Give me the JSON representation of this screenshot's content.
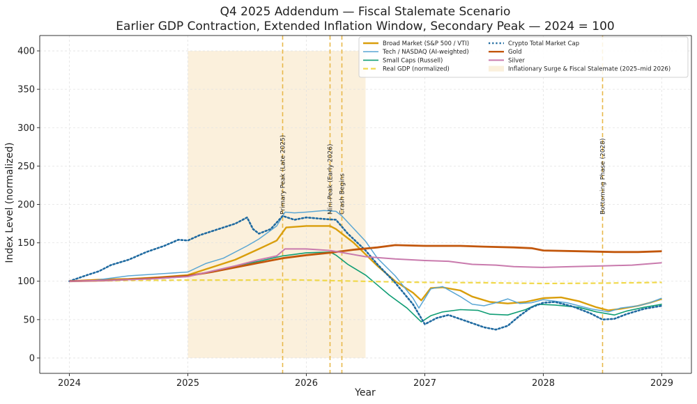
{
  "chart_data": {
    "type": "line",
    "title": "Q4 2025 Addendum — Fiscal Stalemate Scenario",
    "subtitle": "Earlier GDP Contraction, Extended Inflation Window, Secondary Peak — 2024 = 100",
    "xlabel": "Year",
    "ylabel": "Index Level (normalized)",
    "xlim": [
      2023.75,
      2029.25
    ],
    "ylim": [
      -20,
      420
    ],
    "xticks": [
      2024,
      2025,
      2026,
      2027,
      2028,
      2029
    ],
    "yticks": [
      0,
      50,
      100,
      150,
      200,
      250,
      300,
      350,
      400
    ],
    "grid": true,
    "legend_position": "top-right",
    "shaded_region": {
      "label": "Inflationary Surge & Fiscal Stalemate (2025–mid 2026)",
      "x_start": 2025.0,
      "x_end": 2026.5,
      "color": "#fbf0dc"
    },
    "annotations": [
      {
        "label": "Primary Peak (Late 2025)",
        "x": 2025.8
      },
      {
        "label": "Mini-Peak (Early 2026)",
        "x": 2026.2
      },
      {
        "label": "Crash Begins",
        "x": 2026.3
      },
      {
        "label": "Bottoming Phase (2028)",
        "x": 2028.5
      }
    ],
    "series": [
      {
        "name": "Broad Market (S&P 500 / VTI)",
        "color": "#d99e0b",
        "style": "solid",
        "width": 2.4,
        "points": [
          [
            2024.0,
            100
          ],
          [
            2024.25,
            102
          ],
          [
            2024.5,
            103
          ],
          [
            2024.75,
            105
          ],
          [
            2025.0,
            108
          ],
          [
            2025.2,
            118
          ],
          [
            2025.4,
            128
          ],
          [
            2025.6,
            142
          ],
          [
            2025.75,
            153
          ],
          [
            2025.83,
            170
          ],
          [
            2026.0,
            172
          ],
          [
            2026.2,
            172
          ],
          [
            2026.25,
            168
          ],
          [
            2026.4,
            150
          ],
          [
            2026.6,
            120
          ],
          [
            2026.75,
            100
          ],
          [
            2026.9,
            85
          ],
          [
            2026.97,
            75
          ],
          [
            2027.05,
            91
          ],
          [
            2027.15,
            92
          ],
          [
            2027.3,
            88
          ],
          [
            2027.4,
            80
          ],
          [
            2027.55,
            73
          ],
          [
            2027.7,
            71
          ],
          [
            2027.85,
            73
          ],
          [
            2028.0,
            78
          ],
          [
            2028.15,
            79
          ],
          [
            2028.3,
            74
          ],
          [
            2028.45,
            66
          ],
          [
            2028.55,
            62
          ],
          [
            2028.65,
            64
          ],
          [
            2028.8,
            68
          ],
          [
            2028.9,
            72
          ],
          [
            2029.0,
            77
          ]
        ]
      },
      {
        "name": "Tech / NASDAQ (AI-weighted)",
        "color": "#5aa6d4",
        "style": "solid",
        "width": 1.5,
        "points": [
          [
            2024.0,
            100
          ],
          [
            2024.2,
            101
          ],
          [
            2024.5,
            107
          ],
          [
            2024.8,
            110
          ],
          [
            2025.0,
            112
          ],
          [
            2025.15,
            123
          ],
          [
            2025.3,
            130
          ],
          [
            2025.5,
            146
          ],
          [
            2025.6,
            155
          ],
          [
            2025.75,
            172
          ],
          [
            2025.82,
            190
          ],
          [
            2025.9,
            189
          ],
          [
            2026.0,
            190
          ],
          [
            2026.15,
            192
          ],
          [
            2026.25,
            191
          ],
          [
            2026.3,
            185
          ],
          [
            2026.5,
            152
          ],
          [
            2026.6,
            130
          ],
          [
            2026.75,
            107
          ],
          [
            2026.9,
            78
          ],
          [
            2026.95,
            65
          ],
          [
            2027.05,
            90
          ],
          [
            2027.15,
            93
          ],
          [
            2027.3,
            80
          ],
          [
            2027.4,
            70
          ],
          [
            2027.5,
            68
          ],
          [
            2027.6,
            72
          ],
          [
            2027.7,
            77
          ],
          [
            2027.8,
            71
          ],
          [
            2027.9,
            72
          ],
          [
            2028.0,
            76
          ],
          [
            2028.2,
            72
          ],
          [
            2028.4,
            64
          ],
          [
            2028.55,
            60
          ],
          [
            2028.65,
            65
          ],
          [
            2028.8,
            68
          ],
          [
            2028.9,
            72
          ],
          [
            2029.0,
            78
          ]
        ]
      },
      {
        "name": "Small Caps (Russell)",
        "color": "#0f9d74",
        "style": "solid",
        "width": 1.6,
        "points": [
          [
            2024.0,
            100
          ],
          [
            2024.3,
            101
          ],
          [
            2024.6,
            103
          ],
          [
            2024.8,
            104
          ],
          [
            2025.0,
            106
          ],
          [
            2025.2,
            113
          ],
          [
            2025.4,
            120
          ],
          [
            2025.6,
            126
          ],
          [
            2025.8,
            133
          ],
          [
            2026.0,
            137
          ],
          [
            2026.2,
            138
          ],
          [
            2026.25,
            134
          ],
          [
            2026.35,
            122
          ],
          [
            2026.5,
            108
          ],
          [
            2026.6,
            95
          ],
          [
            2026.7,
            82
          ],
          [
            2026.85,
            65
          ],
          [
            2026.97,
            47
          ],
          [
            2027.05,
            55
          ],
          [
            2027.15,
            60
          ],
          [
            2027.3,
            63
          ],
          [
            2027.45,
            62
          ],
          [
            2027.55,
            57
          ],
          [
            2027.7,
            56
          ],
          [
            2027.85,
            63
          ],
          [
            2027.95,
            70
          ],
          [
            2028.1,
            69
          ],
          [
            2028.3,
            66
          ],
          [
            2028.45,
            60
          ],
          [
            2028.6,
            56
          ],
          [
            2028.7,
            61
          ],
          [
            2028.85,
            66
          ],
          [
            2029.0,
            70
          ]
        ]
      },
      {
        "name": "Real GDP (normalized)",
        "color": "#f0d84a",
        "style": "dashed",
        "width": 2.2,
        "points": [
          [
            2024.0,
            100
          ],
          [
            2024.5,
            101
          ],
          [
            2025.0,
            101.5
          ],
          [
            2025.5,
            101.5
          ],
          [
            2025.8,
            102
          ],
          [
            2026.0,
            101.5
          ],
          [
            2026.3,
            100.5
          ],
          [
            2026.6,
            99.5
          ],
          [
            2027.0,
            98.5
          ],
          [
            2027.5,
            98
          ],
          [
            2028.0,
            97
          ],
          [
            2028.5,
            97.5
          ],
          [
            2029.0,
            98.5
          ]
        ]
      },
      {
        "name": "Crypto Total Market Cap",
        "color": "#1f6aa0",
        "style": "dotted",
        "width": 2.6,
        "points": [
          [
            2024.0,
            100
          ],
          [
            2024.15,
            108
          ],
          [
            2024.25,
            113
          ],
          [
            2024.35,
            121
          ],
          [
            2024.5,
            128
          ],
          [
            2024.65,
            138
          ],
          [
            2024.8,
            146
          ],
          [
            2024.92,
            154
          ],
          [
            2025.0,
            153
          ],
          [
            2025.1,
            160
          ],
          [
            2025.2,
            165
          ],
          [
            2025.3,
            170
          ],
          [
            2025.4,
            175
          ],
          [
            2025.5,
            183
          ],
          [
            2025.55,
            168
          ],
          [
            2025.6,
            162
          ],
          [
            2025.7,
            168
          ],
          [
            2025.8,
            185
          ],
          [
            2025.9,
            180
          ],
          [
            2026.0,
            183
          ],
          [
            2026.15,
            181
          ],
          [
            2026.25,
            180
          ],
          [
            2026.35,
            162
          ],
          [
            2026.5,
            140
          ],
          [
            2026.6,
            122
          ],
          [
            2026.75,
            98
          ],
          [
            2026.9,
            70
          ],
          [
            2027.0,
            44
          ],
          [
            2027.1,
            52
          ],
          [
            2027.2,
            56
          ],
          [
            2027.35,
            48
          ],
          [
            2027.5,
            40
          ],
          [
            2027.6,
            37
          ],
          [
            2027.7,
            42
          ],
          [
            2027.8,
            55
          ],
          [
            2027.9,
            66
          ],
          [
            2028.0,
            72
          ],
          [
            2028.1,
            73
          ],
          [
            2028.25,
            67
          ],
          [
            2028.4,
            58
          ],
          [
            2028.5,
            50
          ],
          [
            2028.6,
            51
          ],
          [
            2028.7,
            57
          ],
          [
            2028.85,
            64
          ],
          [
            2029.0,
            68
          ]
        ]
      },
      {
        "name": "Gold",
        "color": "#c2570c",
        "style": "solid",
        "width": 2.8,
        "points": [
          [
            2024.0,
            100
          ],
          [
            2024.3,
            101
          ],
          [
            2024.6,
            103
          ],
          [
            2024.8,
            105
          ],
          [
            2025.0,
            107
          ],
          [
            2025.2,
            112
          ],
          [
            2025.4,
            118
          ],
          [
            2025.6,
            124
          ],
          [
            2025.8,
            130
          ],
          [
            2026.0,
            134
          ],
          [
            2026.2,
            137
          ],
          [
            2026.4,
            141
          ],
          [
            2026.6,
            144
          ],
          [
            2026.75,
            147
          ],
          [
            2027.0,
            146
          ],
          [
            2027.3,
            146
          ],
          [
            2027.5,
            145
          ],
          [
            2027.75,
            144
          ],
          [
            2027.9,
            143
          ],
          [
            2028.0,
            140
          ],
          [
            2028.3,
            139
          ],
          [
            2028.6,
            138
          ],
          [
            2028.8,
            138
          ],
          [
            2029.0,
            139
          ]
        ]
      },
      {
        "name": "Silver",
        "color": "#c97aad",
        "style": "solid",
        "width": 2.0,
        "points": [
          [
            2024.0,
            100
          ],
          [
            2024.3,
            101
          ],
          [
            2024.5,
            102
          ],
          [
            2024.7,
            103
          ],
          [
            2025.0,
            106
          ],
          [
            2025.2,
            113
          ],
          [
            2025.4,
            120
          ],
          [
            2025.6,
            128
          ],
          [
            2025.75,
            133
          ],
          [
            2025.82,
            142
          ],
          [
            2026.0,
            142
          ],
          [
            2026.2,
            140
          ],
          [
            2026.35,
            136
          ],
          [
            2026.5,
            132
          ],
          [
            2026.75,
            129
          ],
          [
            2027.0,
            127
          ],
          [
            2027.2,
            126
          ],
          [
            2027.4,
            122
          ],
          [
            2027.6,
            121
          ],
          [
            2027.75,
            119
          ],
          [
            2028.0,
            118
          ],
          [
            2028.25,
            119
          ],
          [
            2028.5,
            120
          ],
          [
            2028.75,
            121
          ],
          [
            2029.0,
            124
          ]
        ]
      }
    ]
  }
}
